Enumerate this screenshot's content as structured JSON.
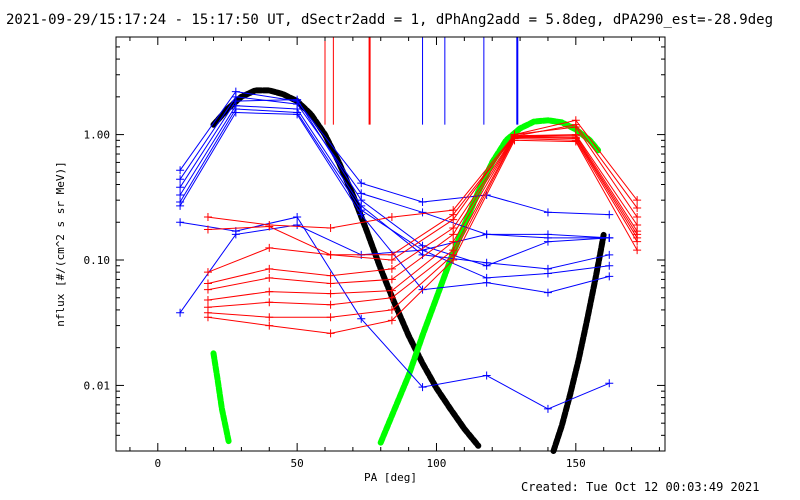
{
  "header": {
    "title": "2021-09-29/15:17:24 - 15:17:50 UT, dSectr2add = 1, dPhAng2add = 5.8deg, dPA290_est=-28.9deg"
  },
  "footer": {
    "created": "Created: Tue Oct 12 00:03:49 2021"
  },
  "chart_data": {
    "type": "line",
    "title": "",
    "xlabel": "PA [deg]",
    "ylabel": "nflux [#/(cm^2 s sr MeV)]",
    "xlim": [
      -15,
      182
    ],
    "ylim": [
      0.003,
      6.0
    ],
    "yscale": "log",
    "grid": false,
    "xticks": [
      0,
      50,
      100,
      150
    ],
    "xtick_labels": [
      "0",
      "50",
      "100",
      "150"
    ],
    "yticks": [
      0.01,
      0.1,
      1.0
    ],
    "ytick_labels": [
      "0.01",
      "0.10",
      "1.00"
    ],
    "colors": {
      "blue": "#0000ff",
      "red": "#ff0000",
      "black": "#000000",
      "green": "#00ff00"
    },
    "series": [
      {
        "color": "#0000ff",
        "x": [
          8,
          28,
          50,
          73,
          95,
          118,
          140,
          162
        ],
        "y": [
          0.52,
          2.2,
          1.85,
          0.41,
          0.29,
          0.33,
          0.24,
          0.23
        ]
      },
      {
        "color": "#0000ff",
        "x": [
          8,
          28,
          50,
          73,
          95,
          118,
          140,
          162
        ],
        "y": [
          0.44,
          2.0,
          1.75,
          0.34,
          0.24,
          0.16,
          0.16,
          0.15
        ]
      },
      {
        "color": "#0000ff",
        "x": [
          8,
          28,
          50,
          73,
          95,
          118,
          140,
          162
        ],
        "y": [
          0.38,
          1.85,
          1.9,
          0.3,
          0.13,
          0.09,
          0.14,
          0.15
        ]
      },
      {
        "color": "#0000ff",
        "x": [
          8,
          28,
          50,
          73,
          95,
          118,
          140,
          162
        ],
        "y": [
          0.33,
          1.7,
          1.6,
          0.27,
          0.11,
          0.095,
          0.085,
          0.11
        ]
      },
      {
        "color": "#0000ff",
        "x": [
          8,
          28,
          50,
          73,
          95,
          118,
          140,
          162
        ],
        "y": [
          0.29,
          1.6,
          1.5,
          0.25,
          0.12,
          0.072,
          0.078,
          0.09
        ]
      },
      {
        "color": "#0000ff",
        "x": [
          8,
          28,
          50,
          73,
          95,
          118,
          140,
          162
        ],
        "y": [
          0.27,
          1.5,
          1.45,
          0.23,
          0.058,
          0.066,
          0.055,
          0.074
        ]
      },
      {
        "color": "#0000ff",
        "x": [
          8,
          28,
          50,
          73,
          95,
          118,
          140,
          162
        ],
        "y": [
          0.2,
          0.17,
          0.22,
          0.034,
          0.0097,
          0.012,
          0.0065,
          0.0104
        ]
      },
      {
        "color": "#0000ff",
        "x": [
          8,
          28,
          50,
          73,
          95,
          118,
          140,
          162
        ],
        "y": [
          0.038,
          0.16,
          0.19,
          0.11,
          0.12,
          0.16,
          0.15,
          0.15
        ]
      },
      {
        "color": "#ff0000",
        "x": [
          18,
          40,
          62,
          84,
          106,
          128,
          150,
          172
        ],
        "y": [
          0.22,
          0.19,
          0.18,
          0.22,
          0.25,
          1.0,
          1.3,
          0.3
        ]
      },
      {
        "color": "#ff0000",
        "x": [
          18,
          40,
          62,
          84,
          106,
          128,
          150,
          172
        ],
        "y": [
          0.175,
          0.185,
          0.11,
          0.11,
          0.23,
          0.97,
          1.2,
          0.26
        ]
      },
      {
        "color": "#ff0000",
        "x": [
          18,
          40,
          62,
          84,
          106,
          128,
          150,
          172
        ],
        "y": [
          0.08,
          0.125,
          0.11,
          0.1,
          0.21,
          1.0,
          1.15,
          0.22
        ]
      },
      {
        "color": "#ff0000",
        "x": [
          18,
          40,
          62,
          84,
          106,
          128,
          150,
          172
        ],
        "y": [
          0.065,
          0.085,
          0.075,
          0.085,
          0.18,
          0.98,
          1.0,
          0.19
        ]
      },
      {
        "color": "#ff0000",
        "x": [
          18,
          40,
          62,
          84,
          106,
          128,
          150,
          172
        ],
        "y": [
          0.058,
          0.072,
          0.065,
          0.07,
          0.16,
          0.97,
          0.98,
          0.17
        ]
      },
      {
        "color": "#ff0000",
        "x": [
          18,
          40,
          62,
          84,
          106,
          128,
          150,
          172
        ],
        "y": [
          0.048,
          0.056,
          0.054,
          0.057,
          0.14,
          0.96,
          0.95,
          0.16
        ]
      },
      {
        "color": "#ff0000",
        "x": [
          18,
          40,
          62,
          84,
          106,
          128,
          150,
          172
        ],
        "y": [
          0.042,
          0.046,
          0.044,
          0.05,
          0.12,
          0.95,
          0.93,
          0.15
        ]
      },
      {
        "color": "#ff0000",
        "x": [
          18,
          40,
          62,
          84,
          106,
          128,
          150,
          172
        ],
        "y": [
          0.038,
          0.035,
          0.035,
          0.04,
          0.11,
          0.93,
          0.9,
          0.14
        ]
      },
      {
        "color": "#ff0000",
        "x": [
          18,
          40,
          62,
          84,
          106,
          128,
          150,
          172
        ],
        "y": [
          0.035,
          0.03,
          0.026,
          0.033,
          0.1,
          0.9,
          0.88,
          0.12
        ]
      }
    ],
    "vertical_markers": [
      {
        "color": "#ff0000",
        "x": 60,
        "y_bottom": 1.2,
        "width": 1
      },
      {
        "color": "#ff0000",
        "x": 63,
        "y_bottom": 1.2,
        "width": 1
      },
      {
        "color": "#ff0000",
        "x": 76,
        "y_bottom": 1.2,
        "width": 2
      },
      {
        "color": "#0000ff",
        "x": 95,
        "y_bottom": 1.2,
        "width": 1
      },
      {
        "color": "#0000ff",
        "x": 103,
        "y_bottom": 1.2,
        "width": 1
      },
      {
        "color": "#0000ff",
        "x": 117,
        "y_bottom": 1.2,
        "width": 1
      },
      {
        "color": "#0000ff",
        "x": 129,
        "y_bottom": 1.2,
        "width": 2
      }
    ],
    "dotted_curves": [
      {
        "color": "#000000",
        "x": [
          20,
          25,
          30,
          35,
          40,
          45,
          50,
          55,
          60,
          65,
          70,
          75,
          80,
          85,
          90,
          95,
          100,
          105,
          110,
          115
        ],
        "y": [
          1.2,
          1.6,
          2.0,
          2.25,
          2.25,
          2.1,
          1.85,
          1.45,
          1.0,
          0.6,
          0.33,
          0.17,
          0.085,
          0.045,
          0.025,
          0.015,
          0.0095,
          0.0065,
          0.0045,
          0.0033
        ]
      },
      {
        "color": "#000000",
        "x": [
          142,
          145,
          148,
          151,
          154,
          157,
          159,
          160
        ],
        "y": [
          0.003,
          0.0048,
          0.0085,
          0.016,
          0.033,
          0.07,
          0.12,
          0.16
        ]
      },
      {
        "color": "#00ff00",
        "x": [
          80,
          85,
          90,
          95,
          100,
          105,
          110,
          115,
          120,
          125,
          130,
          135,
          140,
          145,
          150,
          155,
          158
        ],
        "y": [
          0.0035,
          0.0065,
          0.012,
          0.025,
          0.05,
          0.1,
          0.19,
          0.35,
          0.6,
          0.9,
          1.12,
          1.27,
          1.3,
          1.25,
          1.1,
          0.9,
          0.75
        ]
      },
      {
        "color": "#00ff00",
        "x": [
          20,
          21.5,
          23,
          24.5,
          25.5
        ],
        "y": [
          0.018,
          0.011,
          0.0065,
          0.0045,
          0.0035
        ]
      }
    ]
  }
}
